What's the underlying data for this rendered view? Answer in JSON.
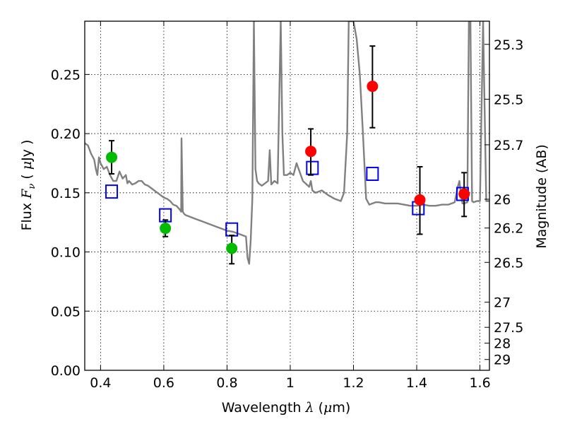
{
  "chart_data": {
    "type": "scatter",
    "title": "",
    "xlabel": {
      "pre": "Wavelength  ",
      "symbol": "λ",
      "post": " (",
      "mu": "μ",
      "unit": "m)"
    },
    "ylabel": {
      "pre": "Flux  ",
      "symbol": "F",
      "sub": "ν",
      "post": "  ( ",
      "mu": "μ",
      "unit": "Jy )"
    },
    "y2label": "Magnitude (AB)",
    "xlim": [
      0.35,
      1.63
    ],
    "ylim": [
      0.0,
      0.295
    ],
    "grid": true,
    "x_ticks": [
      {
        "value": 0.4,
        "label": "0.4"
      },
      {
        "value": 0.6,
        "label": "0.6"
      },
      {
        "value": 0.8,
        "label": "0.8"
      },
      {
        "value": 1.0,
        "label": "1"
      },
      {
        "value": 1.2,
        "label": "1.2"
      },
      {
        "value": 1.4,
        "label": "1.4"
      },
      {
        "value": 1.6,
        "label": "1.6"
      }
    ],
    "y_ticks": [
      {
        "value": 0.0,
        "label": "0.00"
      },
      {
        "value": 0.05,
        "label": "0.05"
      },
      {
        "value": 0.1,
        "label": "0.10"
      },
      {
        "value": 0.15,
        "label": "0.15"
      },
      {
        "value": 0.2,
        "label": "0.20"
      },
      {
        "value": 0.25,
        "label": "0.25"
      }
    ],
    "y2_ticks": [
      {
        "mag": 25.3,
        "label": "25.3"
      },
      {
        "mag": 25.5,
        "label": "25.5"
      },
      {
        "mag": 25.7,
        "label": "25.7"
      },
      {
        "mag": 26.0,
        "label": "26"
      },
      {
        "mag": 26.2,
        "label": "26.2"
      },
      {
        "mag": 26.5,
        "label": "26.5"
      },
      {
        "mag": 27.0,
        "label": "27"
      },
      {
        "mag": 27.5,
        "label": "27.5"
      },
      {
        "mag": 28.0,
        "label": "28"
      },
      {
        "mag": 29.0,
        "label": "29"
      }
    ],
    "series": [
      {
        "kind": "line",
        "color": "#808080",
        "x": [
          0.35,
          0.36,
          0.37,
          0.38,
          0.385,
          0.39,
          0.395,
          0.4,
          0.41,
          0.42,
          0.43,
          0.44,
          0.45,
          0.46,
          0.47,
          0.48,
          0.485,
          0.49,
          0.5,
          0.51,
          0.52,
          0.53,
          0.54,
          0.55,
          0.56,
          0.57,
          0.58,
          0.59,
          0.6,
          0.61,
          0.62,
          0.63,
          0.64,
          0.65,
          0.655,
          0.656,
          0.66,
          0.665,
          0.67,
          0.68,
          0.7,
          0.72,
          0.74,
          0.76,
          0.78,
          0.8,
          0.82,
          0.84,
          0.86,
          0.865,
          0.87,
          0.875,
          0.88,
          0.885,
          0.89,
          0.895,
          0.9,
          0.91,
          0.92,
          0.93,
          0.935,
          0.94,
          0.95,
          0.96,
          0.97,
          0.975,
          0.98,
          0.99,
          1.0,
          1.01,
          1.02,
          1.04,
          1.06,
          1.065,
          1.07,
          1.08,
          1.1,
          1.12,
          1.14,
          1.16,
          1.17,
          1.18,
          1.185,
          1.19,
          1.2,
          1.21,
          1.22,
          1.23,
          1.24,
          1.25,
          1.26,
          1.27,
          1.28,
          1.3,
          1.32,
          1.34,
          1.36,
          1.38,
          1.4,
          1.42,
          1.44,
          1.46,
          1.48,
          1.5,
          1.52,
          1.53,
          1.535,
          1.54,
          1.545,
          1.55,
          1.56,
          1.565,
          1.57,
          1.575,
          1.58,
          1.59,
          1.6,
          1.61,
          1.62,
          1.63
        ],
        "y": [
          0.192,
          0.19,
          0.183,
          0.178,
          0.17,
          0.165,
          0.18,
          0.175,
          0.17,
          0.172,
          0.165,
          0.16,
          0.16,
          0.168,
          0.162,
          0.165,
          0.158,
          0.16,
          0.157,
          0.158,
          0.16,
          0.16,
          0.157,
          0.156,
          0.154,
          0.152,
          0.15,
          0.148,
          0.146,
          0.145,
          0.143,
          0.14,
          0.139,
          0.136,
          0.134,
          0.196,
          0.134,
          0.132,
          0.131,
          0.13,
          0.128,
          0.126,
          0.124,
          0.122,
          0.12,
          0.118,
          0.117,
          0.115,
          0.113,
          0.095,
          0.09,
          0.11,
          0.145,
          0.295,
          0.17,
          0.16,
          0.158,
          0.156,
          0.158,
          0.16,
          0.186,
          0.157,
          0.16,
          0.158,
          0.295,
          0.2,
          0.165,
          0.165,
          0.167,
          0.165,
          0.175,
          0.16,
          0.155,
          0.16,
          0.152,
          0.15,
          0.152,
          0.148,
          0.145,
          0.143,
          0.15,
          0.2,
          0.295,
          0.295,
          0.295,
          0.28,
          0.25,
          0.2,
          0.145,
          0.14,
          0.141,
          0.142,
          0.142,
          0.141,
          0.141,
          0.141,
          0.14,
          0.139,
          0.139,
          0.14,
          0.139,
          0.139,
          0.14,
          0.14,
          0.142,
          0.155,
          0.16,
          0.148,
          0.141,
          0.141,
          0.142,
          0.295,
          0.295,
          0.143,
          0.142,
          0.143,
          0.143,
          0.295,
          0.143,
          0.143
        ]
      },
      {
        "kind": "open-square",
        "color": "#0000ff",
        "x": [
          0.435,
          0.605,
          0.815,
          1.07,
          1.26,
          1.405,
          1.545
        ],
        "y": [
          0.151,
          0.131,
          0.119,
          0.171,
          0.166,
          0.137,
          0.149
        ]
      },
      {
        "kind": "filled-circle",
        "color": "#00bb00",
        "x": [
          0.435,
          0.605,
          0.815
        ],
        "y": [
          0.18,
          0.12,
          0.103
        ],
        "yerr_low": [
          0.166,
          0.113,
          0.09
        ],
        "yerr_high": [
          0.194,
          0.127,
          0.114
        ]
      },
      {
        "kind": "filled-circle",
        "color": "#ff0000",
        "x": [
          1.065,
          1.26,
          1.41,
          1.55
        ],
        "y": [
          0.185,
          0.24,
          0.144,
          0.149
        ],
        "yerr_low": [
          0.165,
          0.205,
          0.115,
          0.13
        ],
        "yerr_high": [
          0.204,
          0.274,
          0.172,
          0.167
        ]
      }
    ]
  }
}
